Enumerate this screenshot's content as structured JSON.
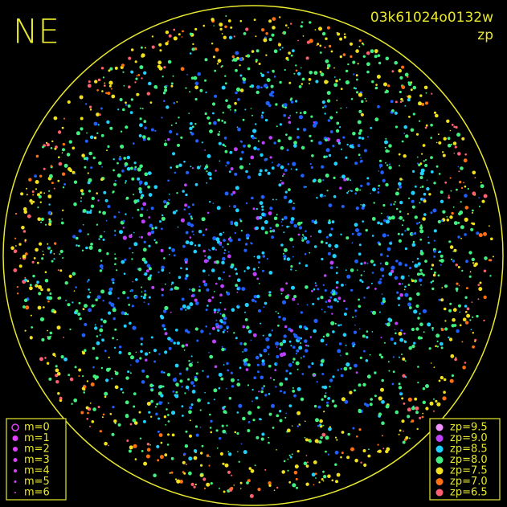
{
  "header": {
    "title": "NE",
    "frame_id": "03k61024o0132w",
    "color_key": "zp"
  },
  "magnitude_legend": {
    "items": [
      "m=0",
      "m=1",
      "m=2",
      "m=3",
      "m=4",
      "m=5",
      "m=6"
    ],
    "color": "#e040ff"
  },
  "zp_legend": {
    "items": [
      {
        "label": "zp=9.5",
        "color": "#f090ff"
      },
      {
        "label": "zp=9.0",
        "color": "#c040ff"
      },
      {
        "label": "zp=8.5",
        "color": "#20d0ff"
      },
      {
        "label": "zp=8.0",
        "color": "#40f080"
      },
      {
        "label": "zp=7.5",
        "color": "#f0e020"
      },
      {
        "label": "zp=7.0",
        "color": "#ff7010"
      },
      {
        "label": "zp=6.5",
        "color": "#ff6070"
      }
    ]
  }
}
